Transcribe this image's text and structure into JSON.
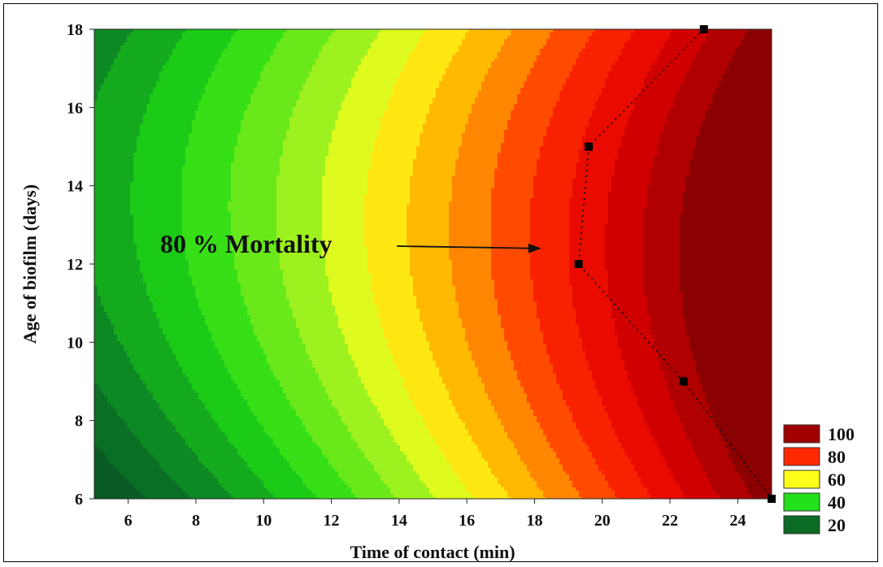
{
  "chart_data": {
    "type": "contour",
    "xlabel": "Time of contact (min)",
    "ylabel": "Age of biofilm (days)",
    "xlim": [
      5,
      25
    ],
    "ylim": [
      6,
      18
    ],
    "xticks": [
      6,
      8,
      10,
      12,
      14,
      16,
      18,
      20,
      22,
      24
    ],
    "yticks": [
      6,
      8,
      10,
      12,
      14,
      16,
      18
    ],
    "z_range": [
      15,
      105
    ],
    "contour_levels": [
      20,
      25,
      30,
      35,
      40,
      45,
      50,
      55,
      60,
      65,
      70,
      75,
      80,
      85,
      90,
      95,
      100
    ],
    "legend": {
      "placement": "bottom-right",
      "entries": [
        {
          "label": "100",
          "color": "#a00000"
        },
        {
          "label": "80",
          "color": "#ff2a00"
        },
        {
          "label": "60",
          "color": "#ffff1a"
        },
        {
          "label": "40",
          "color": "#22e01a"
        },
        {
          "label": "20",
          "color": "#0b6b24"
        }
      ]
    },
    "annotation": {
      "text": "80 % Mortality",
      "arrow_to": {
        "x": 18.2,
        "y": 12.4
      }
    },
    "mortality_80_points": [
      {
        "x": 23.0,
        "y": 18.0
      },
      {
        "x": 19.6,
        "y": 15.0
      },
      {
        "x": 19.3,
        "y": 12.0
      },
      {
        "x": 22.4,
        "y": 9.0
      },
      {
        "x": 25.0,
        "y": 6.0
      }
    ]
  }
}
